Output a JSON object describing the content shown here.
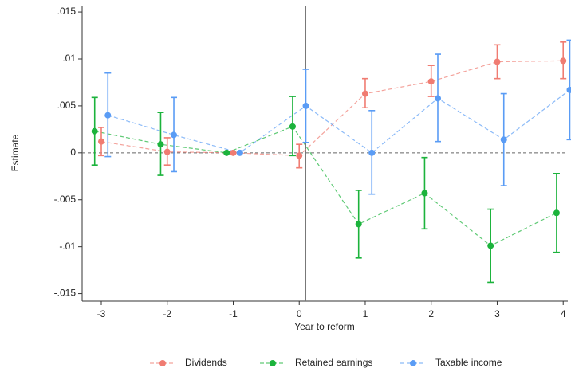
{
  "chart_data": {
    "type": "errorbar",
    "x_label": "Year to reform",
    "y_label": "Estimate",
    "xlim": [
      -3.29,
      4.07
    ],
    "xticks": [
      -3,
      -2,
      -1,
      0,
      1,
      2,
      3,
      4
    ],
    "ylim": [
      -0.0158,
      0.0156
    ],
    "yticks": [
      {
        "value": -0.015,
        "label": "-.015"
      },
      {
        "value": -0.01,
        "label": "-.01"
      },
      {
        "value": -0.005,
        "label": "-.005"
      },
      0,
      {
        "value": 0.005,
        "label": ".005"
      },
      {
        "value": 0.01,
        "label": ".01"
      },
      {
        "value": 0.015,
        "label": ".015"
      }
    ],
    "vline": 0.1,
    "hline": 0,
    "series": [
      {
        "name": "Dividends",
        "color": "#f07c72",
        "x": [
          -3,
          -2,
          -1,
          0,
          1,
          2,
          3,
          4
        ],
        "values": [
          0.0012,
          0.0001,
          0,
          -0.0003,
          0.0063,
          0.0076,
          0.0097,
          0.0098
        ],
        "lower": [
          -0.0003,
          -0.0013,
          0,
          -0.0016,
          0.0048,
          0.006,
          0.0079,
          0.0079
        ],
        "upper": [
          0.0027,
          0.0016,
          0,
          0.0009,
          0.0079,
          0.0093,
          0.0115,
          0.0118
        ]
      },
      {
        "name": "Retained earnings",
        "color": "#1cb33c",
        "x": [
          -3.1,
          -2.1,
          -1.1,
          -0.1,
          0.9,
          1.9,
          2.9,
          3.9
        ],
        "values": [
          0.0023,
          0.0009,
          0,
          0.0028,
          -0.0076,
          -0.0043,
          -0.0099,
          -0.0064
        ],
        "lower": [
          -0.0013,
          -0.0024,
          0,
          -0.0003,
          -0.0112,
          -0.0081,
          -0.0138,
          -0.0106
        ],
        "upper": [
          0.0059,
          0.0043,
          0,
          0.006,
          -0.004,
          -0.0005,
          -0.006,
          -0.0022
        ]
      },
      {
        "name": "Taxable income",
        "color": "#5a9cf5",
        "x": [
          -2.9,
          -1.9,
          -0.9,
          0.1,
          1.1,
          2.1,
          3.1,
          4.1
        ],
        "values": [
          0.004,
          0.0019,
          0,
          0.005,
          0,
          0.0058,
          0.0014,
          0.0067
        ],
        "lower": [
          -0.0004,
          -0.002,
          0,
          0.0011,
          -0.0044,
          0.0012,
          -0.0035,
          0.0014
        ],
        "upper": [
          0.0085,
          0.0059,
          0,
          0.0089,
          0.0045,
          0.0105,
          0.0063,
          0.012
        ]
      }
    ]
  }
}
